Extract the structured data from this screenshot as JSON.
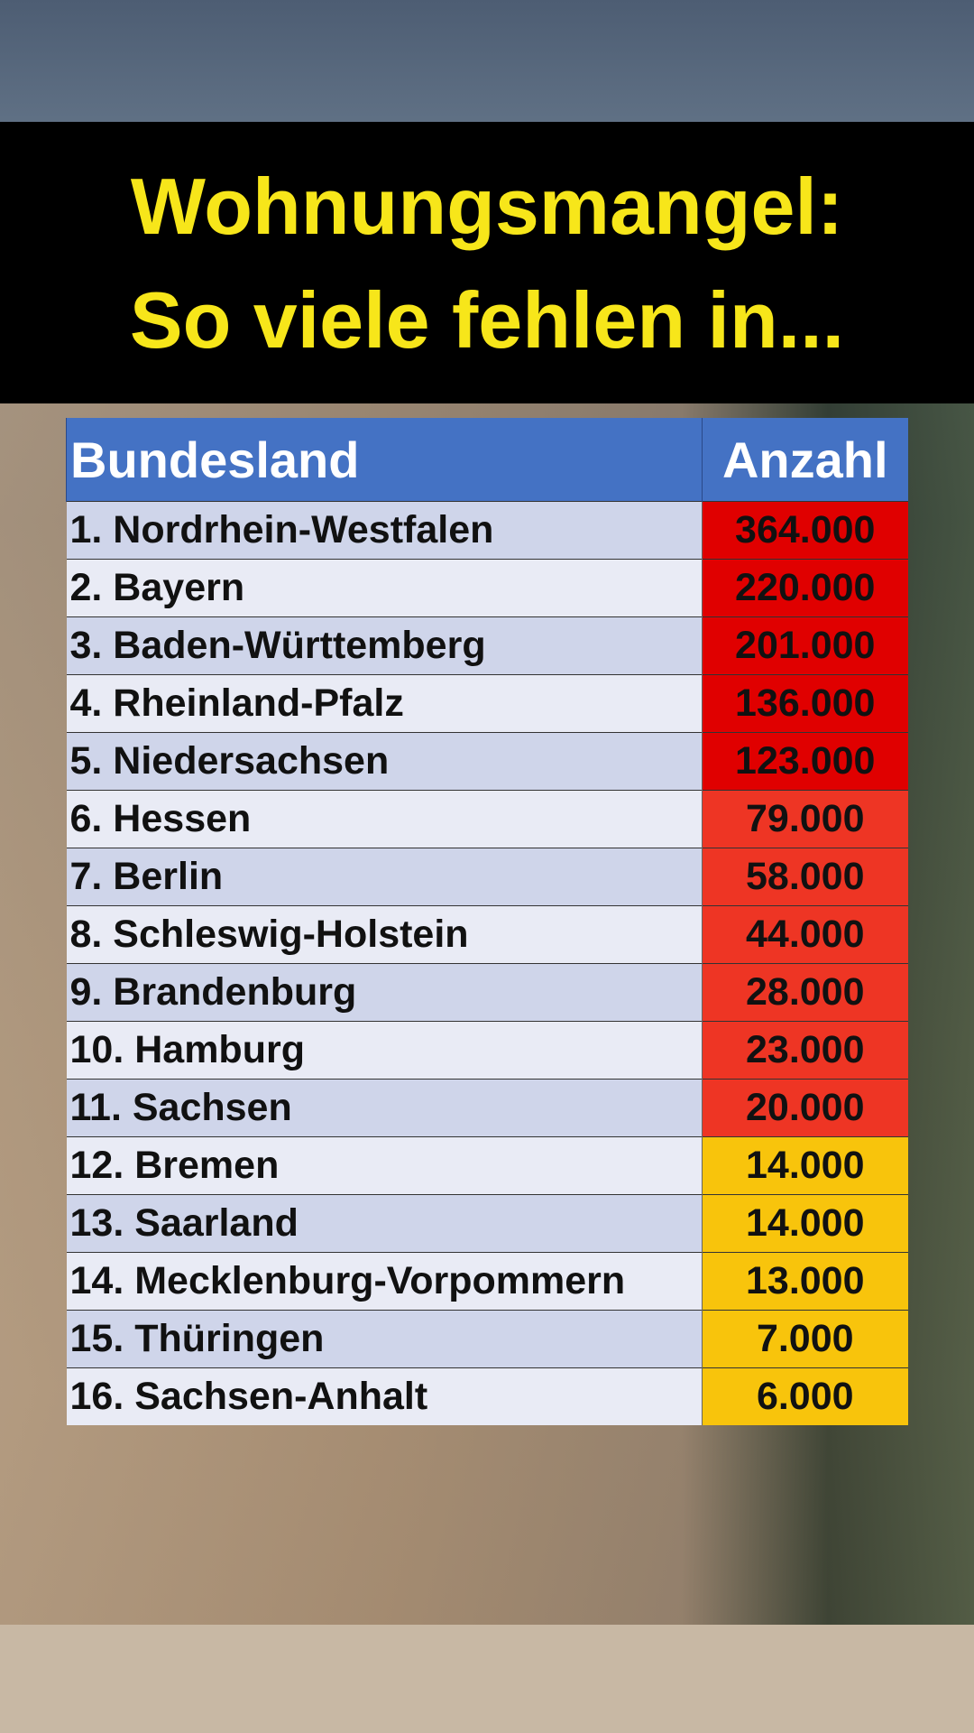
{
  "header": {
    "title_lines": [
      "Wohnungsmangel:",
      "So viele fehlen in..."
    ]
  },
  "table": {
    "columns": [
      "Bundesland",
      "Anzahl"
    ],
    "rows": [
      [
        "1. Nordrhein-Westfalen",
        "364.000"
      ],
      [
        "2. Bayern",
        "220.000"
      ],
      [
        "3. Baden-Württemberg",
        "201.000"
      ],
      [
        "4. Rheinland-Pfalz",
        "136.000"
      ],
      [
        "5. Niedersachsen",
        "123.000"
      ],
      [
        "6. Hessen",
        "79.000"
      ],
      [
        "7. Berlin",
        "58.000"
      ],
      [
        "8. Schleswig-Holstein",
        "44.000"
      ],
      [
        "9. Brandenburg",
        "28.000"
      ],
      [
        "10. Hamburg",
        "23.000"
      ],
      [
        "11. Sachsen",
        "20.000"
      ],
      [
        "12. Bremen",
        "14.000"
      ],
      [
        "13. Saarland",
        "14.000"
      ],
      [
        "14. Mecklenburg-Vorpommern",
        "13.000"
      ],
      [
        "15. Thüringen",
        "7.000"
      ],
      [
        "16. Sachsen-Anhalt",
        "6.000"
      ]
    ]
  }
}
